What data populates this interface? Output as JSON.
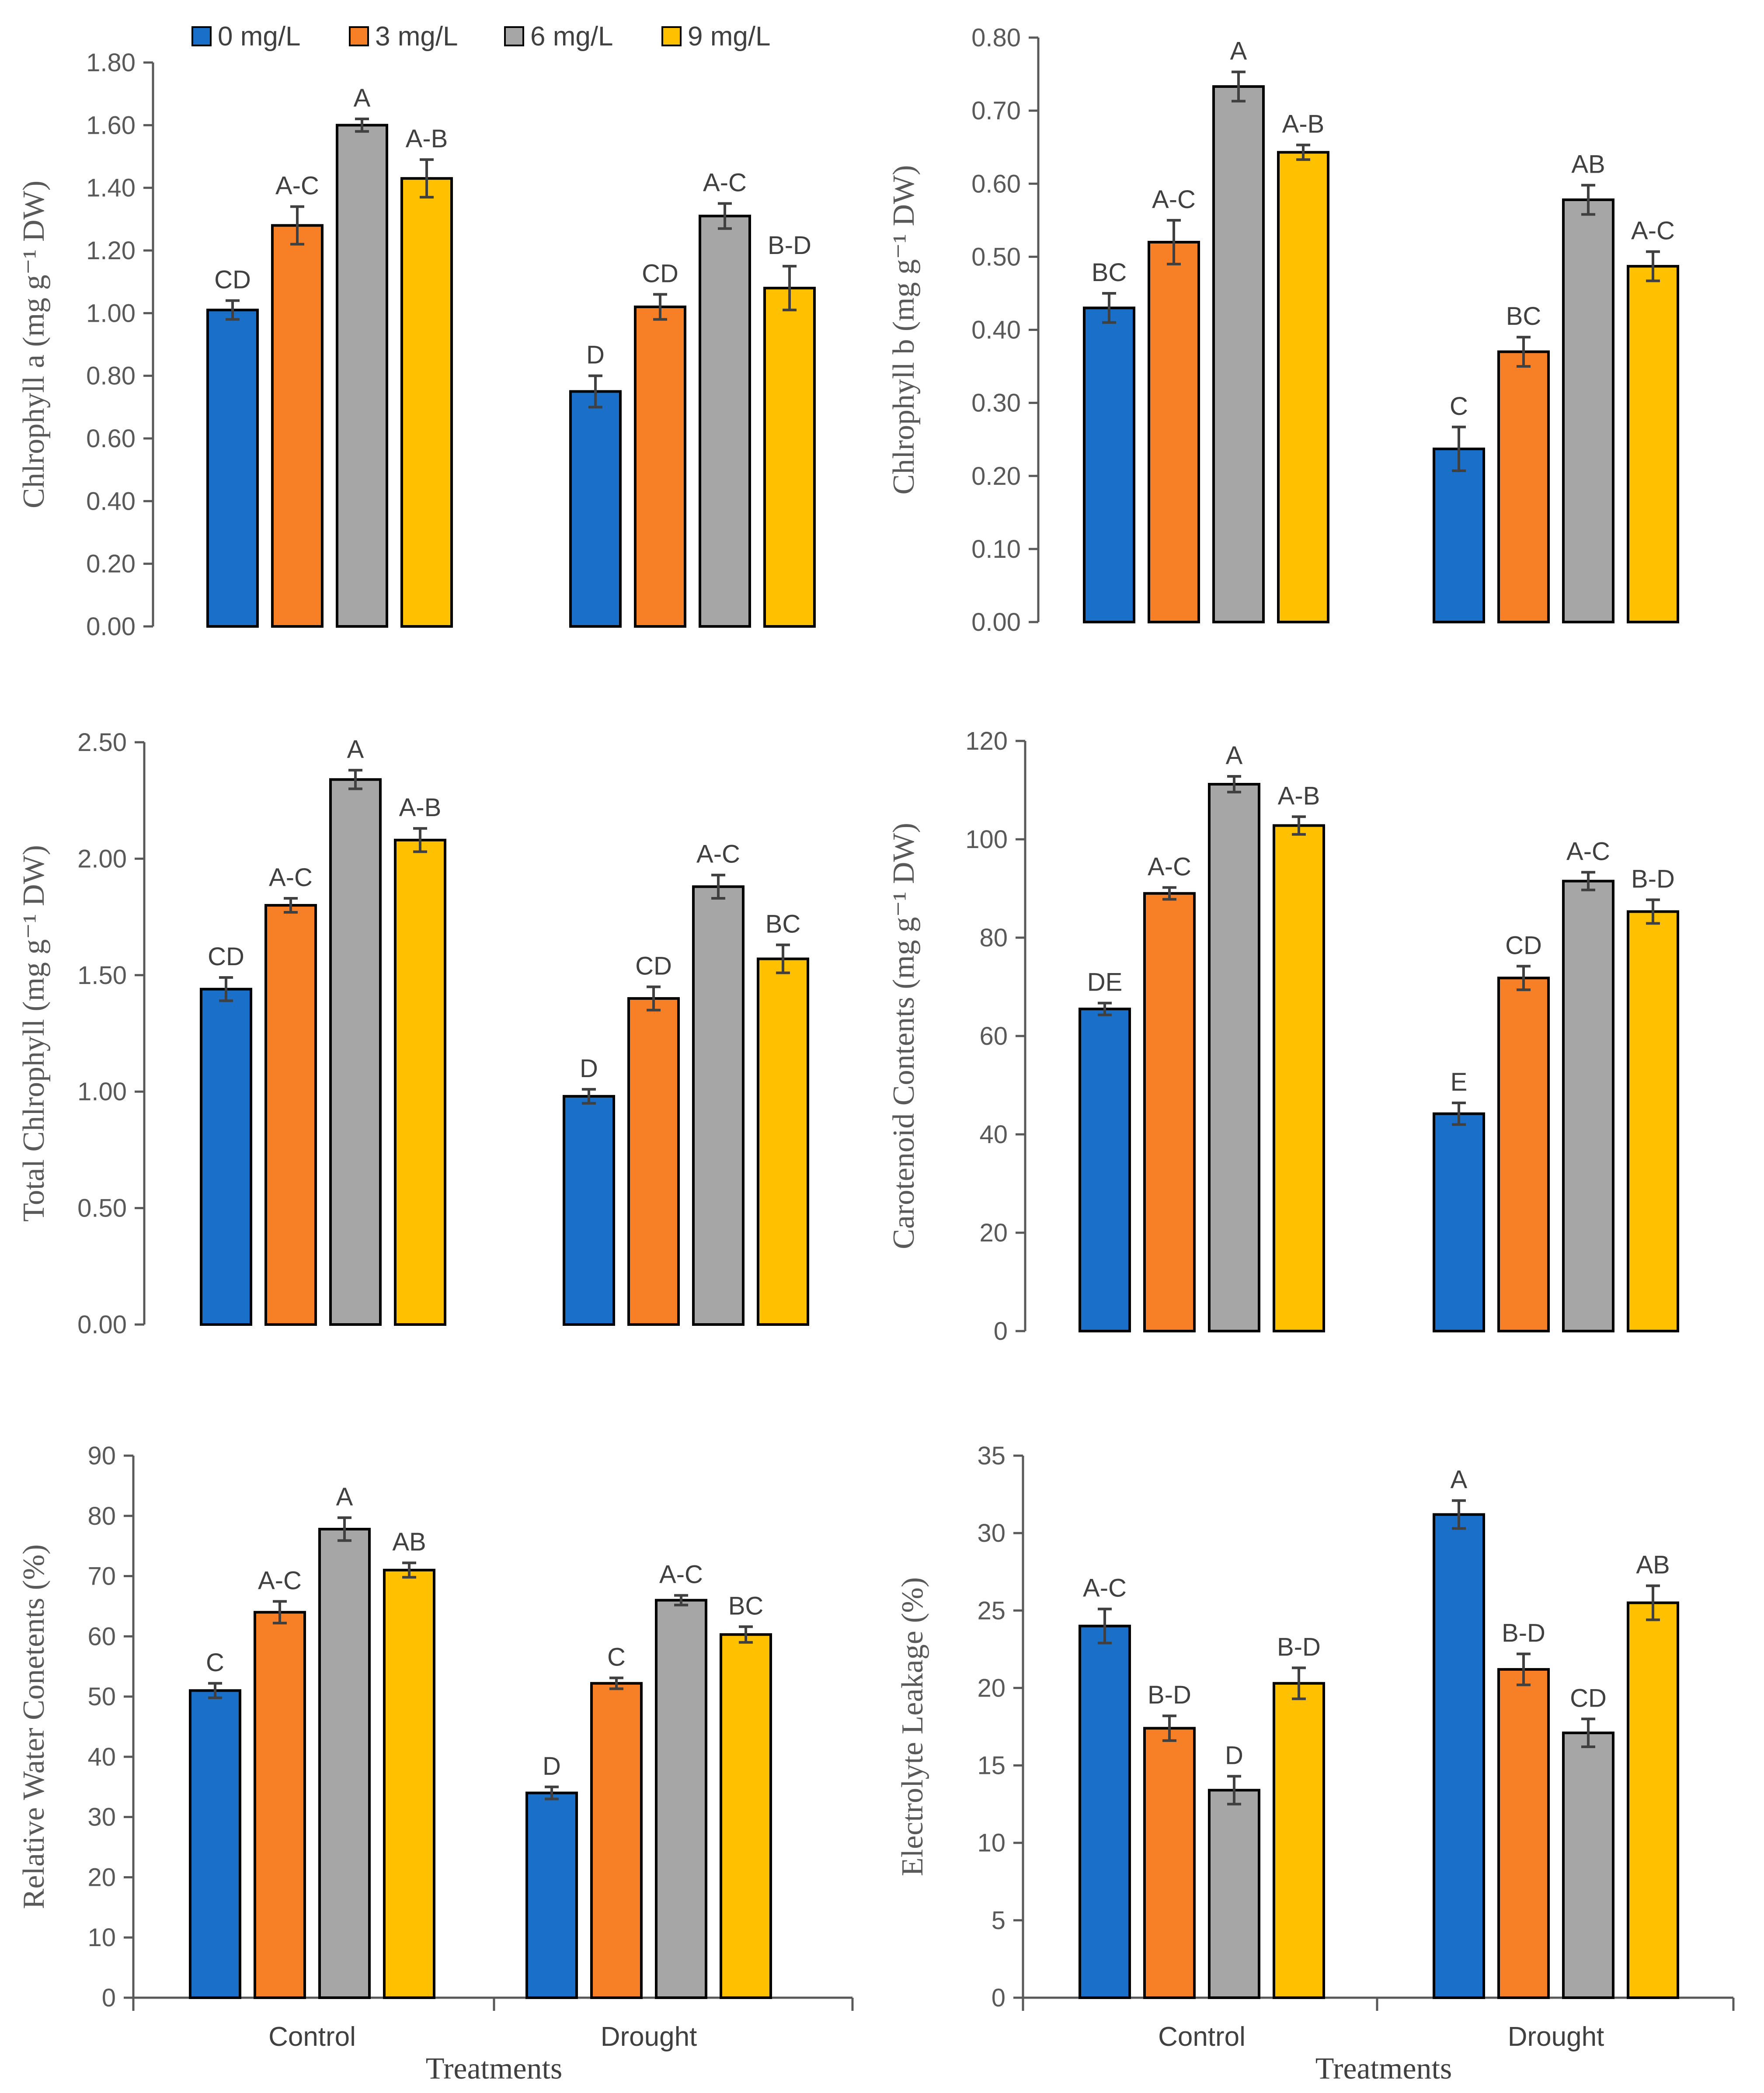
{
  "legend": {
    "items": [
      {
        "label": "0 mg/L",
        "color": "#1a6fc8"
      },
      {
        "label": "3 mg/L",
        "color": "#f77f26"
      },
      {
        "label": "6 mg/L",
        "color": "#a6a6a6"
      },
      {
        "label": "9 mg/L",
        "color": "#ffc000"
      }
    ]
  },
  "x_axis_title": "Treatments",
  "chart_data": [
    {
      "type": "bar",
      "ylabel": "Chlrophyll a (mg g⁻¹ DW)",
      "categories": [
        "Control",
        "Drought"
      ],
      "show_x_labels": false,
      "ylim": [
        0,
        1.8
      ],
      "yticks": [
        "0.00",
        "0.20",
        "0.40",
        "0.60",
        "0.80",
        "1.00",
        "1.20",
        "1.40",
        "1.60",
        "1.80"
      ],
      "series": [
        {
          "name": "0 mg/L",
          "values": [
            1.01,
            0.75
          ],
          "errors": [
            0.03,
            0.05
          ],
          "letters": [
            "CD",
            "D"
          ]
        },
        {
          "name": "3 mg/L",
          "values": [
            1.28,
            1.02
          ],
          "errors": [
            0.06,
            0.04
          ],
          "letters": [
            "A-C",
            "CD"
          ]
        },
        {
          "name": "6 mg/L",
          "values": [
            1.6,
            1.31
          ],
          "errors": [
            0.02,
            0.04
          ],
          "letters": [
            "A",
            "A-C"
          ]
        },
        {
          "name": "9 mg/L",
          "values": [
            1.43,
            1.08
          ],
          "errors": [
            0.06,
            0.07
          ],
          "letters": [
            "A-B",
            "B-D"
          ]
        }
      ]
    },
    {
      "type": "bar",
      "ylabel": "Chlrophyll b (mg g⁻¹ DW)",
      "categories": [
        "Control",
        "Drought"
      ],
      "show_x_labels": false,
      "ylim": [
        0,
        0.8
      ],
      "yticks": [
        "0.00",
        "0.10",
        "0.20",
        "0.30",
        "0.40",
        "0.50",
        "0.60",
        "0.70",
        "0.80"
      ],
      "series": [
        {
          "name": "0 mg/L",
          "values": [
            0.43,
            0.237
          ],
          "errors": [
            0.02,
            0.03
          ],
          "letters": [
            "BC",
            "C"
          ]
        },
        {
          "name": "3 mg/L",
          "values": [
            0.52,
            0.37
          ],
          "errors": [
            0.03,
            0.02
          ],
          "letters": [
            "A-C",
            "BC"
          ]
        },
        {
          "name": "6 mg/L",
          "values": [
            0.733,
            0.578
          ],
          "errors": [
            0.02,
            0.02
          ],
          "letters": [
            "A",
            "AB"
          ]
        },
        {
          "name": "9 mg/L",
          "values": [
            0.643,
            0.487
          ],
          "errors": [
            0.01,
            0.02
          ],
          "letters": [
            "A-B",
            "A-C"
          ]
        }
      ]
    },
    {
      "type": "bar",
      "ylabel": "Total Chlrophyll (mg g⁻¹ DW)",
      "categories": [
        "Control",
        "Drought"
      ],
      "show_x_labels": false,
      "ylim": [
        0,
        2.5
      ],
      "yticks": [
        "0.00",
        "0.50",
        "1.00",
        "1.50",
        "2.00",
        "2.50"
      ],
      "series": [
        {
          "name": "0 mg/L",
          "values": [
            1.44,
            0.98
          ],
          "errors": [
            0.05,
            0.03
          ],
          "letters": [
            "CD",
            "D"
          ]
        },
        {
          "name": "3 mg/L",
          "values": [
            1.8,
            1.4
          ],
          "errors": [
            0.03,
            0.05
          ],
          "letters": [
            "A-C",
            "CD"
          ]
        },
        {
          "name": "6 mg/L",
          "values": [
            2.34,
            1.88
          ],
          "errors": [
            0.04,
            0.05
          ],
          "letters": [
            "A",
            "A-C"
          ]
        },
        {
          "name": "9 mg/L",
          "values": [
            2.08,
            1.57
          ],
          "errors": [
            0.05,
            0.06
          ],
          "letters": [
            "A-B",
            "BC"
          ]
        }
      ]
    },
    {
      "type": "bar",
      "ylabel": "Carotenoid Contents (mg g⁻¹ DW)",
      "categories": [
        "Control",
        "Drought"
      ],
      "show_x_labels": false,
      "ylim": [
        0,
        120
      ],
      "yticks": [
        "0",
        "20",
        "40",
        "60",
        "80",
        "100",
        "120"
      ],
      "series": [
        {
          "name": "0 mg/L",
          "values": [
            65.5,
            44.2
          ],
          "errors": [
            1.2,
            2.2
          ],
          "letters": [
            "DE",
            "E"
          ]
        },
        {
          "name": "3 mg/L",
          "values": [
            89.0,
            71.8
          ],
          "errors": [
            1.2,
            2.4
          ],
          "letters": [
            "A-C",
            "CD"
          ]
        },
        {
          "name": "6 mg/L",
          "values": [
            111.2,
            91.5
          ],
          "errors": [
            1.6,
            1.8
          ],
          "letters": [
            "A",
            "A-C"
          ]
        },
        {
          "name": "9 mg/L",
          "values": [
            102.8,
            85.3
          ],
          "errors": [
            1.8,
            2.4
          ],
          "letters": [
            "A-B",
            "B-D"
          ]
        }
      ]
    },
    {
      "type": "bar",
      "ylabel": "Relative Water Conetents (%)",
      "categories": [
        "Control",
        "Drought"
      ],
      "show_x_labels": true,
      "ylim": [
        0,
        90
      ],
      "yticks": [
        "0",
        "10",
        "20",
        "30",
        "40",
        "50",
        "60",
        "70",
        "80",
        "90"
      ],
      "series": [
        {
          "name": "0 mg/L",
          "values": [
            51.0,
            34.0
          ],
          "errors": [
            1.2,
            1.0
          ],
          "letters": [
            "C",
            "D"
          ]
        },
        {
          "name": "3 mg/L",
          "values": [
            64.0,
            52.2
          ],
          "errors": [
            1.8,
            0.9
          ],
          "letters": [
            "A-C",
            "C"
          ]
        },
        {
          "name": "6 mg/L",
          "values": [
            77.8,
            66.0
          ],
          "errors": [
            1.9,
            0.8
          ],
          "letters": [
            "A",
            "A-C"
          ]
        },
        {
          "name": "9 mg/L",
          "values": [
            71.0,
            60.3
          ],
          "errors": [
            1.2,
            1.3
          ],
          "letters": [
            "AB",
            "BC"
          ]
        }
      ]
    },
    {
      "type": "bar",
      "ylabel": "Electrolyte Leakage (%)",
      "categories": [
        "Control",
        "Drought"
      ],
      "show_x_labels": true,
      "ylim": [
        0,
        35
      ],
      "yticks": [
        "0",
        "5",
        "10",
        "15",
        "20",
        "25",
        "30",
        "35"
      ],
      "series": [
        {
          "name": "0 mg/L",
          "values": [
            24.0,
            31.2
          ],
          "errors": [
            1.1,
            0.9
          ],
          "letters": [
            "A-C",
            "A"
          ]
        },
        {
          "name": "3 mg/L",
          "values": [
            17.4,
            21.2
          ],
          "errors": [
            0.8,
            1.0
          ],
          "letters": [
            "B-D",
            "B-D"
          ]
        },
        {
          "name": "6 mg/L",
          "values": [
            13.4,
            17.1
          ],
          "errors": [
            0.9,
            0.9
          ],
          "letters": [
            "D",
            "CD"
          ]
        },
        {
          "name": "9 mg/L",
          "values": [
            20.3,
            25.5
          ],
          "errors": [
            1.0,
            1.1
          ],
          "letters": [
            "B-D",
            "AB"
          ]
        }
      ]
    }
  ]
}
